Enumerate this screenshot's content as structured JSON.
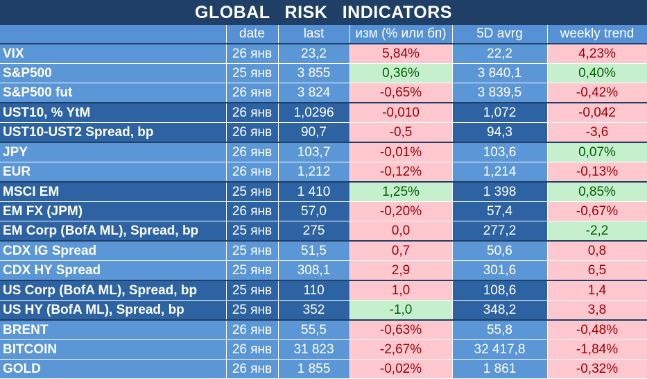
{
  "title": "GLOBAL   RISK   INDICATORS",
  "columns": [
    "",
    "date",
    "last",
    "изм (% или бп)",
    "5D avrg",
    "weekly trend"
  ],
  "rows": [
    {
      "name": "VIX",
      "date": "26 янв",
      "last": "23,2",
      "chg": "5,84%",
      "chg_tone": "red",
      "avg": "22,2",
      "trend": "4,23%",
      "trend_tone": "red",
      "shade": "light",
      "group_start": true
    },
    {
      "name": "S&P500",
      "date": "25 янв",
      "last": "3 855",
      "chg": "0,36%",
      "chg_tone": "green",
      "avg": "3 840,1",
      "trend": "0,40%",
      "trend_tone": "green",
      "shade": "light",
      "group_start": false
    },
    {
      "name": "S&P500 fut",
      "date": "26 янв",
      "last": "3 824",
      "chg": "-0,65%",
      "chg_tone": "red",
      "avg": "3 839,5",
      "trend": "-0,42%",
      "trend_tone": "red",
      "shade": "light",
      "group_start": false
    },
    {
      "name": "UST10, % YtM",
      "date": "26 янв",
      "last": "1,0296",
      "chg": "-0,010",
      "chg_tone": "red",
      "avg": "1,072",
      "trend": "-0,042",
      "trend_tone": "red",
      "shade": "dark",
      "group_start": true
    },
    {
      "name": "UST10-UST2 Spread, bp",
      "date": "26 янв",
      "last": "90,7",
      "chg": "-0,5",
      "chg_tone": "red",
      "avg": "94,3",
      "trend": "-3,6",
      "trend_tone": "red",
      "shade": "dark",
      "group_start": false
    },
    {
      "name": "JPY",
      "date": "26 янв",
      "last": "103,7",
      "chg": "-0,01%",
      "chg_tone": "red",
      "avg": "103,6",
      "trend": "0,07%",
      "trend_tone": "green",
      "shade": "light",
      "group_start": true
    },
    {
      "name": "EUR",
      "date": "26 янв",
      "last": "1,212",
      "chg": "-0,12%",
      "chg_tone": "red",
      "avg": "1,214",
      "trend": "-0,13%",
      "trend_tone": "red",
      "shade": "light",
      "group_start": false
    },
    {
      "name": "MSCI EM",
      "date": "25 янв",
      "last": "1 410",
      "chg": "1,25%",
      "chg_tone": "green",
      "avg": "1 398",
      "trend": "0,85%",
      "trend_tone": "green",
      "shade": "dark",
      "group_start": true
    },
    {
      "name": "EM FX (JPM)",
      "date": "26 янв",
      "last": "57,0",
      "chg": "-0,20%",
      "chg_tone": "red",
      "avg": "57,4",
      "trend": "-0,67%",
      "trend_tone": "red",
      "shade": "dark",
      "group_start": false
    },
    {
      "name": "EM Corp (BofA ML), Spread, bp",
      "date": "25 янв",
      "last": "275",
      "chg": "0,0",
      "chg_tone": "red",
      "avg": "277,2",
      "trend": "-2,2",
      "trend_tone": "green",
      "shade": "dark",
      "group_start": false
    },
    {
      "name": "CDX IG Spread",
      "date": "25 янв",
      "last": "51,5",
      "chg": "0,7",
      "chg_tone": "red",
      "avg": "50,6",
      "trend": "0,8",
      "trend_tone": "red",
      "shade": "light",
      "group_start": true
    },
    {
      "name": "CDX HY Spread",
      "date": "25 янв",
      "last": "308,1",
      "chg": "2,9",
      "chg_tone": "red",
      "avg": "301,6",
      "trend": "6,5",
      "trend_tone": "red",
      "shade": "light",
      "group_start": false
    },
    {
      "name": "US Corp (BofA ML), Spread, bp",
      "date": "25 янв",
      "last": "110",
      "chg": "1,0",
      "chg_tone": "red",
      "avg": "108,6",
      "trend": "1,4",
      "trend_tone": "red",
      "shade": "dark",
      "group_start": true
    },
    {
      "name": "US HY (BofA ML), Spread, bp",
      "date": "25 янв",
      "last": "352",
      "chg": "-1,0",
      "chg_tone": "green",
      "avg": "348,2",
      "trend": "3,8",
      "trend_tone": "red",
      "shade": "dark",
      "group_start": false
    },
    {
      "name": "BRENT",
      "date": "26 янв",
      "last": "55,5",
      "chg": "-0,63%",
      "chg_tone": "red",
      "avg": "55,8",
      "trend": "-0,48%",
      "trend_tone": "red",
      "shade": "light",
      "group_start": true
    },
    {
      "name": "BITCOIN",
      "date": "26 янв",
      "last": "31 823",
      "chg": "-2,67%",
      "chg_tone": "red",
      "avg": "32 417,8",
      "trend": "-1,84%",
      "trend_tone": "red",
      "shade": "light",
      "group_start": false
    },
    {
      "name": "GOLD",
      "date": "26 янв",
      "last": "1 855",
      "chg": "-0,02%",
      "chg_tone": "red",
      "avg": "1 861",
      "trend": "-0,32%",
      "trend_tone": "red",
      "shade": "light",
      "group_start": false
    }
  ]
}
